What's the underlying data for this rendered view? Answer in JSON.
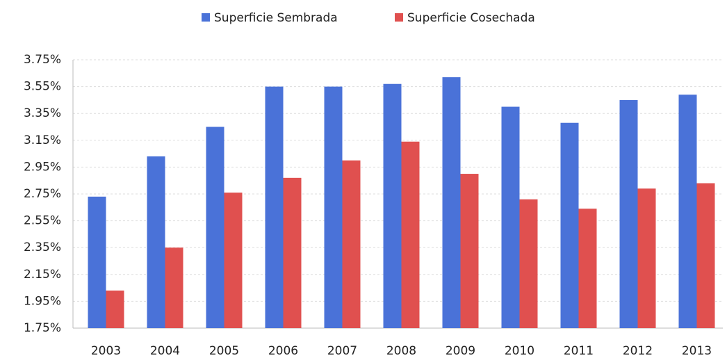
{
  "chart_data": {
    "type": "bar",
    "categories": [
      "2003",
      "2004",
      "2005",
      "2006",
      "2007",
      "2008",
      "2009",
      "2010",
      "2011",
      "2012",
      "2013"
    ],
    "series": [
      {
        "name": "Superficie Sembrada",
        "color": "#4a72d8",
        "values": [
          2.73,
          3.03,
          3.25,
          3.55,
          3.55,
          3.57,
          3.62,
          3.4,
          3.28,
          3.45,
          3.49
        ]
      },
      {
        "name": "Superficie Cosechada",
        "color": "#e0504f",
        "values": [
          2.03,
          2.35,
          2.76,
          2.87,
          3.0,
          3.14,
          2.9,
          2.71,
          2.64,
          2.79,
          2.83
        ]
      }
    ],
    "ylim": [
      1.75,
      3.75
    ],
    "yticks": [
      {
        "value": 1.75,
        "label": "1.75%"
      },
      {
        "value": 1.95,
        "label": "1.95%"
      },
      {
        "value": 2.15,
        "label": "2.15%"
      },
      {
        "value": 2.35,
        "label": "2.35%"
      },
      {
        "value": 2.55,
        "label": "2.55%"
      },
      {
        "value": 2.75,
        "label": "2.75%"
      },
      {
        "value": 2.95,
        "label": "2.95%"
      },
      {
        "value": 3.15,
        "label": "3.15%"
      },
      {
        "value": 3.35,
        "label": "3.35%"
      },
      {
        "value": 3.55,
        "label": "3.55%"
      },
      {
        "value": 3.75,
        "label": "3.75%"
      }
    ],
    "grid": true,
    "legend": "top"
  }
}
